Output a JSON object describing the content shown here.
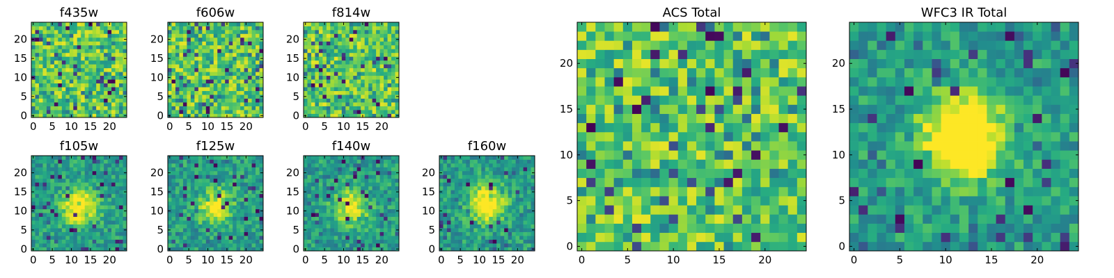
{
  "chart_data": [
    {
      "type": "heatmap",
      "title": "f435w",
      "grid": 25,
      "pattern": "noise",
      "seed": 11,
      "peak": 0,
      "xticks": [
        0,
        5,
        10,
        15,
        20
      ],
      "yticks": [
        0,
        5,
        10,
        15,
        20
      ],
      "xlim": [
        -0.5,
        24.5
      ],
      "ylim": [
        -0.5,
        24.5
      ],
      "colormap": "viridis"
    },
    {
      "type": "heatmap",
      "title": "f606w",
      "grid": 25,
      "pattern": "noise",
      "seed": 23,
      "peak": 0,
      "xticks": [
        0,
        5,
        10,
        15,
        20
      ],
      "yticks": [
        0,
        5,
        10,
        15,
        20
      ],
      "xlim": [
        -0.5,
        24.5
      ],
      "ylim": [
        -0.5,
        24.5
      ],
      "colormap": "viridis"
    },
    {
      "type": "heatmap",
      "title": "f814w",
      "grid": 25,
      "pattern": "noise",
      "seed": 37,
      "peak": 0,
      "xticks": [
        0,
        5,
        10,
        15,
        20
      ],
      "yticks": [
        0,
        5,
        10,
        15,
        20
      ],
      "xlim": [
        -0.5,
        24.5
      ],
      "ylim": [
        -0.5,
        24.5
      ],
      "colormap": "viridis"
    },
    {
      "type": "heatmap",
      "title": "f105w",
      "grid": 25,
      "pattern": "source",
      "seed": 41,
      "peak": 0.55,
      "center": [
        12,
        11
      ],
      "xticks": [
        0,
        5,
        10,
        15,
        20
      ],
      "yticks": [
        0,
        5,
        10,
        15,
        20
      ],
      "xlim": [
        -0.5,
        24.5
      ],
      "ylim": [
        -0.5,
        24.5
      ],
      "colormap": "viridis"
    },
    {
      "type": "heatmap",
      "title": "f125w",
      "grid": 25,
      "pattern": "source",
      "seed": 53,
      "peak": 0.45,
      "center": [
        12,
        11
      ],
      "xticks": [
        0,
        5,
        10,
        15,
        20
      ],
      "yticks": [
        0,
        5,
        10,
        15,
        20
      ],
      "xlim": [
        -0.5,
        24.5
      ],
      "ylim": [
        -0.5,
        24.5
      ],
      "colormap": "viridis"
    },
    {
      "type": "heatmap",
      "title": "f140w",
      "grid": 25,
      "pattern": "source",
      "seed": 67,
      "peak": 0.45,
      "center": [
        12,
        11
      ],
      "xticks": [
        0,
        5,
        10,
        15,
        20
      ],
      "yticks": [
        0,
        5,
        10,
        15,
        20
      ],
      "xlim": [
        -0.5,
        24.5
      ],
      "ylim": [
        -0.5,
        24.5
      ],
      "colormap": "viridis"
    },
    {
      "type": "heatmap",
      "title": "f160w",
      "grid": 25,
      "pattern": "source",
      "seed": 79,
      "peak": 0.6,
      "center": [
        12,
        12
      ],
      "xticks": [
        0,
        5,
        10,
        15,
        20
      ],
      "yticks": [
        0,
        5,
        10,
        15,
        20
      ],
      "xlim": [
        -0.5,
        24.5
      ],
      "ylim": [
        -0.5,
        24.5
      ],
      "colormap": "viridis"
    },
    {
      "type": "heatmap",
      "title": "ACS Total",
      "grid": 25,
      "pattern": "noise",
      "seed": 97,
      "peak": 0,
      "xticks": [
        0,
        5,
        10,
        15,
        20
      ],
      "yticks": [
        0,
        5,
        10,
        15,
        20
      ],
      "xlim": [
        -0.5,
        24.5
      ],
      "ylim": [
        -0.5,
        24.5
      ],
      "colormap": "viridis"
    },
    {
      "type": "heatmap",
      "title": "WFC3 IR Total",
      "grid": 25,
      "pattern": "source",
      "seed": 131,
      "peak": 0.75,
      "center": [
        12,
        12
      ],
      "xticks": [
        0,
        5,
        10,
        15,
        20
      ],
      "yticks": [
        0,
        5,
        10,
        15,
        20
      ],
      "xlim": [
        -0.5,
        24.5
      ],
      "ylim": [
        -0.5,
        24.5
      ],
      "colormap": "viridis"
    }
  ]
}
